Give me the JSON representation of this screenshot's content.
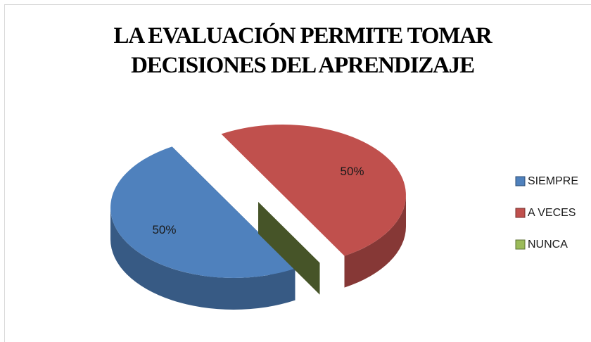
{
  "chart_data": {
    "type": "pie",
    "title": "LA EVALUACIÓN PERMITE TOMAR DECISIONES DEL APRENDIZAJE",
    "categories": [
      "SIEMPRE",
      "A VECES",
      "NUNCA"
    ],
    "values": [
      50,
      50,
      0
    ],
    "value_labels": [
      "50%",
      "50%",
      null
    ],
    "colors": [
      "#4f81bd",
      "#c0504d",
      "#9bbb59"
    ],
    "legend": "right"
  }
}
